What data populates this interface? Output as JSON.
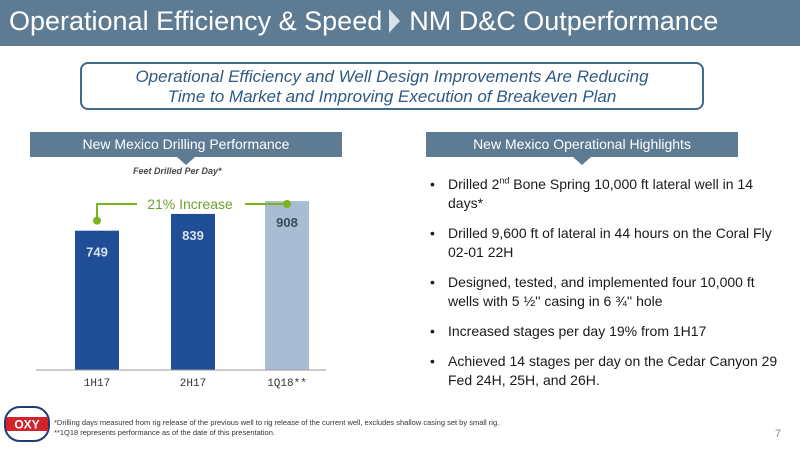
{
  "header": {
    "title_part1": "Operational Efficiency & Speed",
    "title_part2": "NM D&C Outperformance"
  },
  "callout": {
    "line1": "Operational Efficiency and Well Design Improvements Are Reducing",
    "line2": "Time to Market and Improving Execution of Breakeven Plan"
  },
  "left_banner": "New Mexico Drilling Performance",
  "right_banner": "New Mexico Operational Highlights",
  "chart_data": {
    "type": "bar",
    "title": "Feet Drilled Per Day*",
    "categories": [
      "1H17",
      "2H17",
      "1Q18**"
    ],
    "values": [
      749,
      839,
      908
    ],
    "bar_colors": [
      "#1f4e96",
      "#1f4e96",
      "#a8bdd3"
    ],
    "ylim": [
      0,
      1000
    ],
    "annotation": "21% Increase",
    "annotation_color": "#7ab51d",
    "grid": false,
    "legend": "none"
  },
  "highlights": {
    "b1_pre": "Drilled 2",
    "b1_sup": "nd",
    "b1_post": " Bone Spring 10,000 ft lateral well in 14 days*",
    "b2": "Drilled 9,600 ft of lateral in 44 hours on the Coral Fly 02-01 22H",
    "b3": "Designed, tested, and implemented four 10,000 ft wells with 5 ½'' casing in 6 ¾'' hole",
    "b4": "Increased stages per day 19% from 1H17",
    "b5": "Achieved 14 stages per day on the Cedar Canyon 29 Fed 24H, 25H, and 26H."
  },
  "footnotes": {
    "line1": "*Drilling days measured from rig release of the previous well to rig release of the current well, excludes shallow casing set by small rig.",
    "line2": "**1Q18 represents performance as of the date of this presentation."
  },
  "logo": {
    "text": "OXY",
    "red": "#d2232a",
    "blue": "#1e3c78"
  },
  "page_number": "7"
}
